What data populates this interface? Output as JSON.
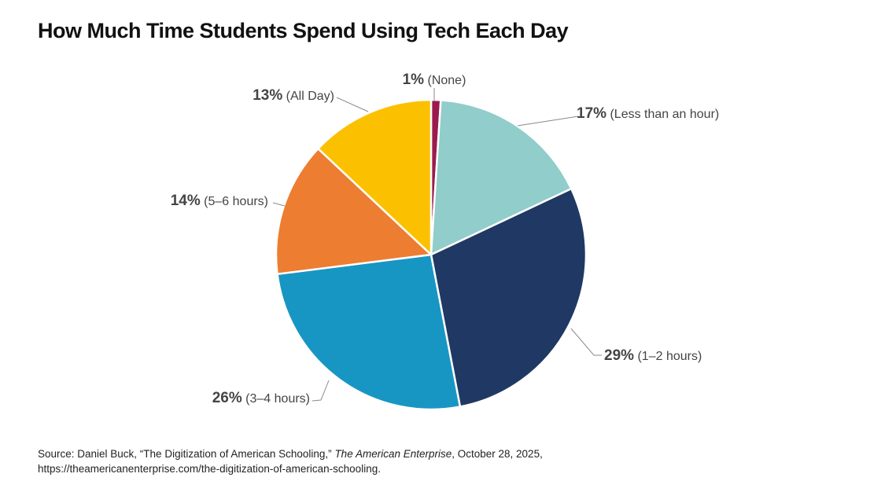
{
  "title": "How Much Time Students Spend Using Tech Each Day",
  "chart_data": {
    "type": "pie",
    "categories": [
      "None",
      "Less than an hour",
      "1–2 hours",
      "3–4 hours",
      "5–6 hours",
      "All Day"
    ],
    "values": [
      1,
      17,
      29,
      26,
      14,
      13
    ],
    "value_labels": [
      "1%",
      "17%",
      "29%",
      "26%",
      "14%",
      "13%"
    ],
    "category_labels": [
      "(None)",
      "(Less than an hour)",
      "(1–2 hours)",
      "(3–4 hours)",
      "(5–6 hours)",
      "(All Day)"
    ],
    "colors": [
      "#9b1b4e",
      "#90cdcb",
      "#203864",
      "#1896c3",
      "#ed7d31",
      "#fbc100"
    ],
    "start_angle_deg": 0,
    "direction": "clockwise"
  },
  "source": {
    "prefix": "Source: Daniel Buck, “The Digitization of American Schooling,” ",
    "publication": "The American Enterprise",
    "suffix": ", October 28, 2025,",
    "url": "https://theamericanenterprise.com/the-digitization-of-american-schooling."
  }
}
